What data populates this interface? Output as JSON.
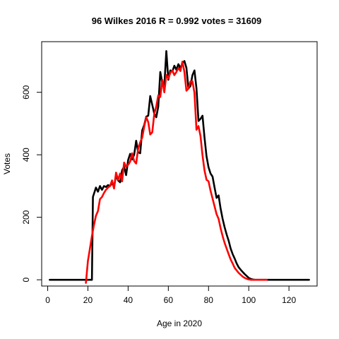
{
  "chart_data": {
    "type": "line",
    "title": "96 Wilkes 2016 R = 0.992 votes = 31609",
    "xlabel": "Age in 2020",
    "ylabel": "Votes",
    "xlim": [
      -3,
      134
    ],
    "ylim": [
      -20,
      762
    ],
    "xticks": [
      0,
      20,
      40,
      60,
      80,
      100,
      120
    ],
    "yticks": [
      0,
      200,
      400,
      600
    ],
    "xtick_labels": [
      "0",
      "20",
      "40",
      "60",
      "80",
      "100",
      "120"
    ],
    "ytick_labels": [
      "0",
      "200",
      "400",
      "600"
    ],
    "grid": false,
    "series": [
      {
        "color": "#000000",
        "x": [
          1,
          22,
          22.5,
          24,
          25,
          26,
          27,
          28,
          29,
          30,
          31,
          32,
          33,
          34,
          35,
          36,
          37,
          38,
          39,
          40,
          41,
          42,
          43,
          44,
          45,
          46,
          47,
          48,
          49,
          50,
          51,
          52,
          53,
          54,
          55,
          56,
          57,
          58,
          59,
          60,
          61,
          62,
          63,
          64,
          65,
          66,
          67,
          68,
          69,
          70,
          71,
          72,
          73,
          74,
          75,
          76,
          77,
          78,
          79,
          80,
          81,
          82,
          83,
          84,
          85,
          86,
          87,
          88,
          89,
          90,
          91,
          92,
          93,
          94,
          95,
          96,
          97,
          98,
          99,
          100,
          101,
          102,
          103,
          104,
          105,
          106,
          107,
          108,
          109,
          110,
          130
        ],
        "y": [
          0,
          0,
          265,
          295,
          282,
          300,
          288,
          300,
          297,
          303,
          300,
          310,
          296,
          335,
          318,
          312,
          350,
          362,
          335,
          383,
          403,
          385,
          400,
          445,
          408,
          405,
          478,
          495,
          522,
          525,
          588,
          560,
          532,
          520,
          555,
          665,
          630,
          620,
          732,
          640,
          670,
          667,
          685,
          672,
          690,
          678,
          692,
          700,
          678,
          612,
          620,
          655,
          670,
          612,
          508,
          515,
          525,
          455,
          395,
          360,
          340,
          330,
          295,
          262,
          270,
          228,
          195,
          168,
          145,
          125,
          100,
          82,
          68,
          52,
          40,
          32,
          25,
          18,
          12,
          6,
          3,
          1,
          0,
          0,
          0,
          0,
          0,
          0,
          0,
          0,
          0
        ]
      },
      {
        "color": "#ff0000",
        "x": [
          19,
          20,
          21,
          22,
          23,
          24,
          25,
          26,
          27,
          28,
          29,
          30,
          31,
          32,
          33,
          34,
          35,
          36,
          37,
          38,
          39,
          40,
          41,
          42,
          43,
          44,
          45,
          46,
          47,
          48,
          49,
          50,
          51,
          52,
          53,
          54,
          55,
          56,
          57,
          58,
          59,
          60,
          61,
          62,
          63,
          64,
          65,
          66,
          67,
          68,
          69,
          70,
          71,
          72,
          73,
          74,
          75,
          76,
          77,
          78,
          79,
          80,
          81,
          82,
          83,
          84,
          85,
          86,
          87,
          88,
          89,
          90,
          91,
          92,
          93,
          94,
          95,
          96,
          97,
          98,
          99,
          100,
          101,
          102,
          103,
          104,
          105,
          106,
          107,
          108,
          109
        ],
        "y": [
          -10,
          60,
          100,
          140,
          175,
          205,
          220,
          258,
          265,
          278,
          288,
          295,
          300,
          318,
          292,
          343,
          320,
          340,
          315,
          375,
          362,
          368,
          378,
          405,
          380,
          372,
          420,
          440,
          455,
          490,
          520,
          505,
          465,
          472,
          530,
          555,
          590,
          585,
          640,
          600,
          655,
          645,
          662,
          670,
          655,
          665,
          678,
          668,
          698,
          665,
          605,
          612,
          635,
          635,
          598,
          480,
          492,
          460,
          398,
          350,
          320,
          315,
          285,
          260,
          235,
          210,
          195,
          165,
          140,
          118,
          100,
          82,
          65,
          52,
          38,
          30,
          22,
          16,
          10,
          6,
          3,
          1,
          0,
          0,
          0,
          0,
          0,
          0,
          0,
          0,
          0
        ]
      }
    ]
  }
}
